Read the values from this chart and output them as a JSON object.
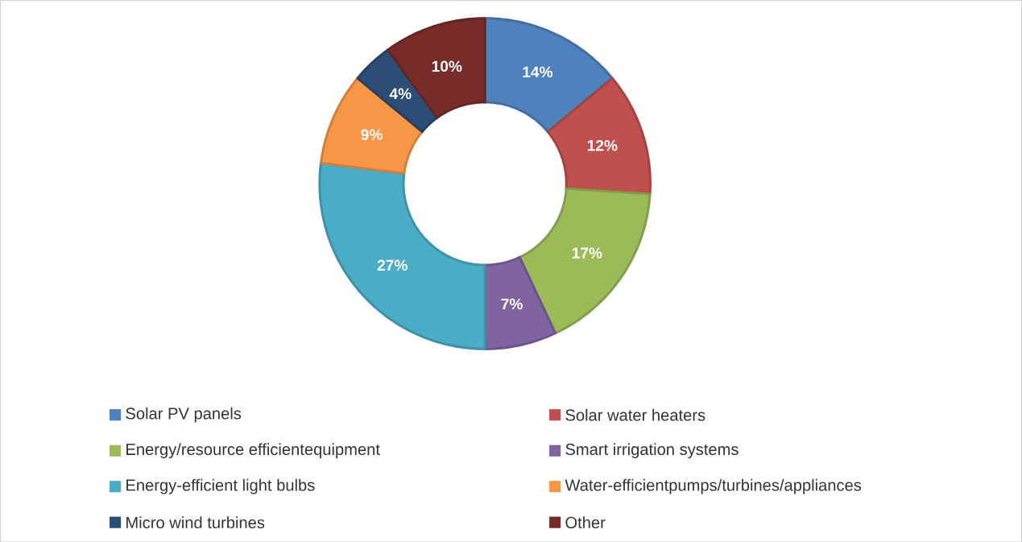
{
  "chart_data": {
    "type": "donut",
    "categories": [
      "Solar PV panels",
      "Solar water heaters",
      "Energy/resource efficientequipment",
      "Smart irrigation systems",
      "Energy-efficient light bulbs",
      "Water-efficientpumps/turbines/appliances",
      "Micro wind turbines",
      "Other"
    ],
    "values": [
      14,
      12,
      17,
      7,
      27,
      9,
      4,
      10
    ],
    "value_labels": [
      "14%",
      "12%",
      "17%",
      "7%",
      "27%",
      "9%",
      "4%",
      "10%"
    ],
    "colors": [
      "#4f81bd",
      "#c0504d",
      "#9bbb59",
      "#8064a2",
      "#4bacc6",
      "#f79646",
      "#2c4d75",
      "#772c2a"
    ],
    "legend": "bottom"
  }
}
